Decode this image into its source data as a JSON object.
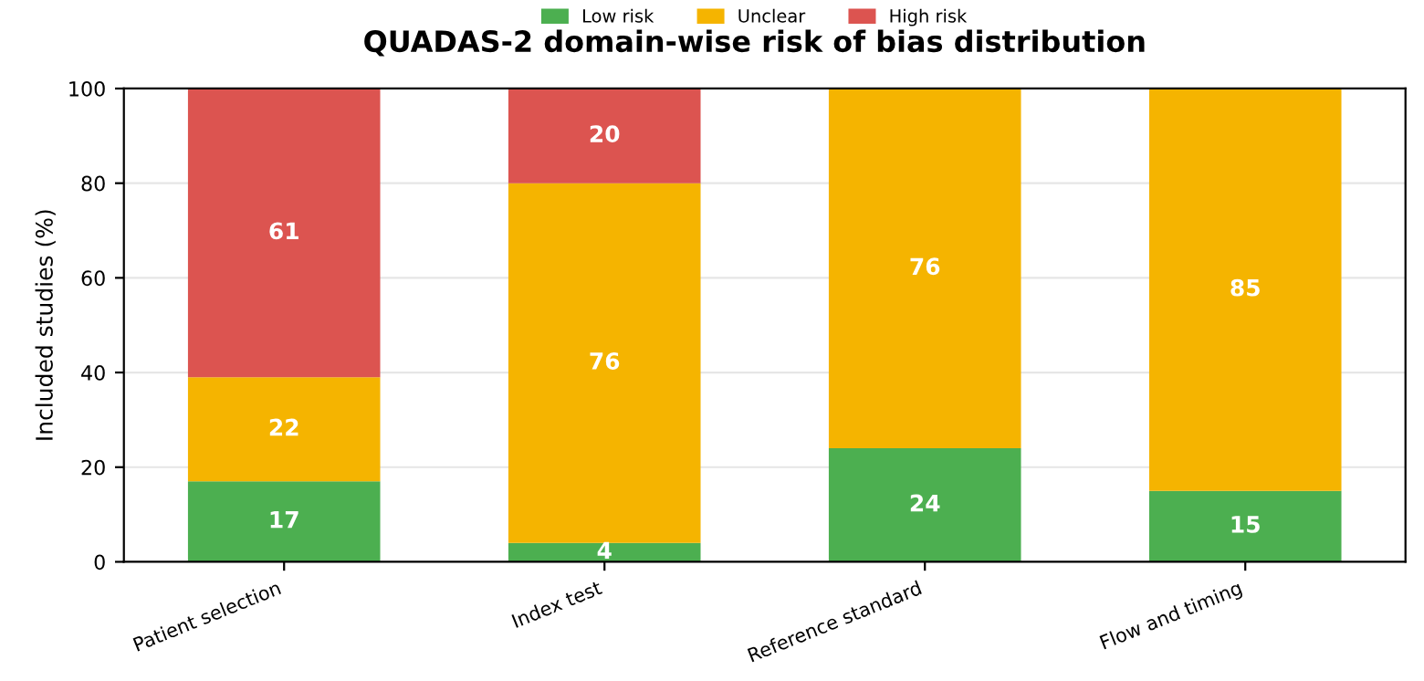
{
  "chart_data": {
    "type": "bar",
    "title": "QUADAS-2 domain-wise risk of bias distribution",
    "ylabel": "Included studies (%)",
    "categories": [
      "Patient selection",
      "Index test",
      "Reference standard",
      "Flow and timing"
    ],
    "stacked": true,
    "series": [
      {
        "name": "Low risk",
        "color": "#4caf50",
        "values": [
          17,
          4,
          24,
          15
        ],
        "value_labels": [
          "17",
          "4",
          "24",
          "15"
        ]
      },
      {
        "name": "Unclear",
        "color": "#f5b400",
        "values": [
          22,
          76,
          76,
          85
        ],
        "value_labels": [
          "22",
          "76",
          "76",
          "85"
        ]
      },
      {
        "name": "High risk",
        "color": "#dc5450",
        "values": [
          61,
          20,
          0,
          0
        ],
        "value_labels": [
          "61",
          "20",
          null,
          null
        ]
      }
    ],
    "ylim": [
      0,
      100
    ],
    "yticks": [
      0,
      20,
      40,
      60,
      80,
      100
    ],
    "grid": "y",
    "legend": "top"
  }
}
